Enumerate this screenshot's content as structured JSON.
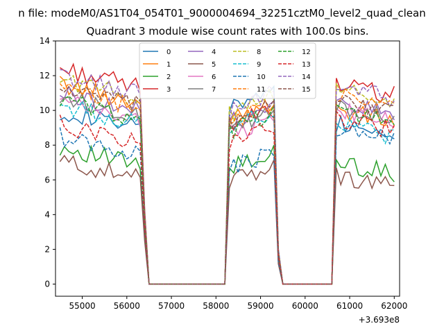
{
  "suptitle": "n file: modeM0/AS1T04_054T01_9000004694_32251cztM0_level2_quad_clean",
  "title": "Quadrant 3 module wise count rates with 100.0s bins.",
  "x_offset_label": "+3.693e8",
  "colors": [
    "#1f77b4",
    "#ff7f0e",
    "#2ca02c",
    "#d62728",
    "#9467bd",
    "#8c564b",
    "#e377c2",
    "#7f7f7f",
    "#bcbd22",
    "#17becf",
    "#1f77b4",
    "#ff7f0e",
    "#2ca02c",
    "#d62728",
    "#9467bd",
    "#8c564b"
  ],
  "chart_data": {
    "type": "line",
    "title": "Quadrant 3 module wise count rates with 100.0s bins.",
    "xlabel": "",
    "ylabel": "",
    "x_offset": 369300000,
    "xlim": [
      54400,
      62120
    ],
    "ylim": [
      -0.7,
      14
    ],
    "xticks": [
      55000,
      56000,
      57000,
      58000,
      59000,
      60000,
      61000,
      62000
    ],
    "xtick_labels": [
      "55000",
      "56000",
      "57000",
      "58000",
      "59000",
      "60000",
      "61000",
      "62000"
    ],
    "yticks": [
      0,
      2,
      4,
      6,
      8,
      10,
      12,
      14
    ],
    "ytick_labels": [
      "0",
      "2",
      "4",
      "6",
      "8",
      "10",
      "12",
      "14"
    ],
    "grid": false,
    "legend": {
      "position": "top-center",
      "columns": 4
    },
    "segments": [
      {
        "start": 54500,
        "step": 100,
        "count": 19
      },
      {
        "start": 56400,
        "step": 100,
        "count": 19
      },
      {
        "start": 58300,
        "step": 100,
        "count": 11
      },
      {
        "start": 59400,
        "step": 100,
        "count": 13
      },
      {
        "start": 60700,
        "step": 100,
        "count": 14
      }
    ],
    "series": [
      {
        "name": "0",
        "style": "solid",
        "levels": [
          10.0,
          10.2,
          9.3
        ]
      },
      {
        "name": "1",
        "style": "solid",
        "levels": [
          11.5,
          9.6,
          10.0
        ]
      },
      {
        "name": "2",
        "style": "solid",
        "levels": [
          7.9,
          6.6,
          7.0
        ]
      },
      {
        "name": "3",
        "style": "solid",
        "levels": [
          12.4,
          9.1,
          11.5
        ]
      },
      {
        "name": "4",
        "style": "solid",
        "levels": [
          11.0,
          9.3,
          10.5
        ]
      },
      {
        "name": "5",
        "style": "solid",
        "levels": [
          7.1,
          5.8,
          6.2
        ]
      },
      {
        "name": "6",
        "style": "solid",
        "levels": [
          10.5,
          8.6,
          10.0
        ]
      },
      {
        "name": "7",
        "style": "solid",
        "levels": [
          10.8,
          8.9,
          10.3
        ]
      },
      {
        "name": "8",
        "style": "dashed",
        "levels": [
          11.8,
          9.8,
          11.2
        ]
      },
      {
        "name": "9",
        "style": "dashed",
        "levels": [
          10.3,
          9.0,
          9.2
        ]
      },
      {
        "name": "10",
        "style": "dashed",
        "levels": [
          8.5,
          6.6,
          9.0
        ]
      },
      {
        "name": "11",
        "style": "dashed",
        "levels": [
          11.2,
          9.3,
          10.8
        ]
      },
      {
        "name": "12",
        "style": "dashed",
        "levels": [
          10.6,
          8.8,
          10.0
        ]
      },
      {
        "name": "13",
        "style": "dashed",
        "levels": [
          9.2,
          8.0,
          9.5
        ]
      },
      {
        "name": "14",
        "style": "dashed",
        "levels": [
          12.0,
          10.0,
          11.3
        ]
      },
      {
        "name": "15",
        "style": "dashed",
        "levels": [
          11.3,
          9.2,
          10.6
        ]
      }
    ]
  }
}
